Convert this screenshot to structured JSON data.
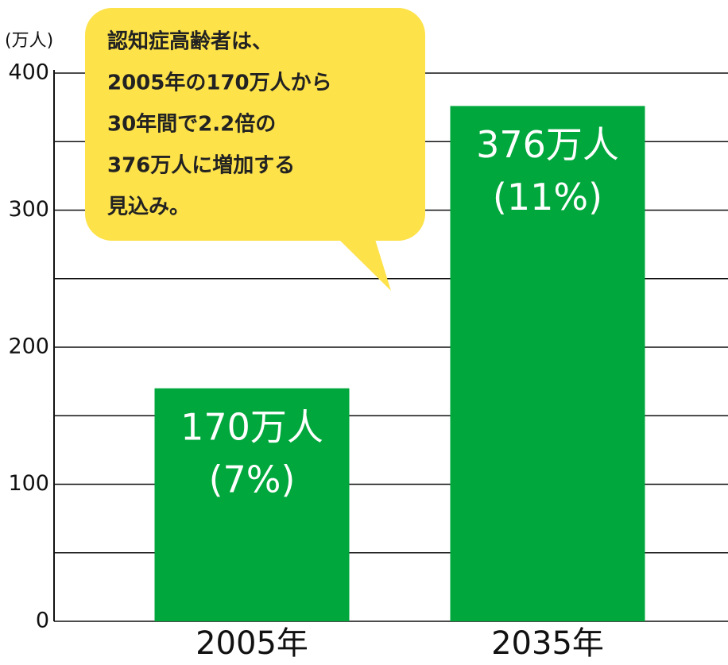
{
  "chart_data": {
    "type": "bar",
    "y_unit": "(万人)",
    "categories": [
      "2005年",
      "2035年"
    ],
    "values": [
      170,
      376
    ],
    "value_labels": [
      "170万人",
      "376万人"
    ],
    "share_labels": [
      "(7%)",
      "(11%)"
    ],
    "color": "#00a73c",
    "ylim": [
      0,
      400
    ],
    "yticks": [
      0,
      100,
      200,
      300,
      400
    ],
    "minor_gridlines": [
      50,
      150,
      250,
      350
    ],
    "grid": true,
    "annotation": [
      "認知症高齢者は、",
      "2005年の170万人から",
      "30年間で2.2倍の",
      "376万人に増加する",
      "見込み。"
    ]
  }
}
